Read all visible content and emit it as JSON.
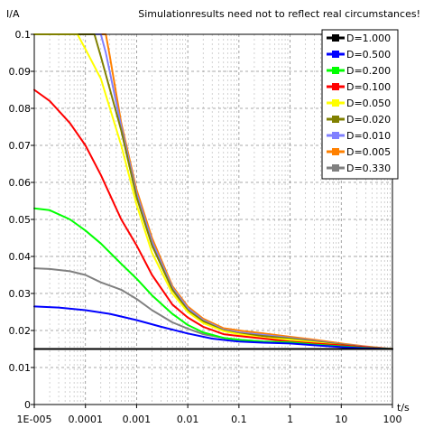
{
  "chart_data": {
    "type": "line",
    "notice": "Simulationresults need not to reflect real circumstances!",
    "ylabel": "I/A",
    "xlabel": "t/s",
    "x_scale": "log",
    "xlim": [
      1e-05,
      100
    ],
    "ylim": [
      0,
      0.1
    ],
    "x_tick_labels": [
      "1E-005",
      "0.0001",
      "0.001",
      "0.01",
      "0.1",
      "1",
      "10",
      "100"
    ],
    "x_tick_values": [
      1e-05,
      0.0001,
      0.001,
      0.01,
      0.1,
      1,
      10,
      100
    ],
    "y_tick_labels": [
      "0",
      "0.01",
      "0.02",
      "0.03",
      "0.04",
      "0.05",
      "0.06",
      "0.07",
      "0.08",
      "0.09",
      "0.1"
    ],
    "y_tick_values": [
      0,
      0.01,
      0.02,
      0.03,
      0.04,
      0.05,
      0.06,
      0.07,
      0.08,
      0.09,
      0.1
    ],
    "grid": true,
    "legend_position": "top-right",
    "series": [
      {
        "name": "D=1.000",
        "color": "#000000",
        "x": [
          1e-05,
          100
        ],
        "y": [
          0.015,
          0.015
        ]
      },
      {
        "name": "D=0.500",
        "color": "#0000ff",
        "x": [
          1e-05,
          3e-05,
          0.0001,
          0.0003,
          0.001,
          0.003,
          0.01,
          0.03,
          0.1,
          0.3,
          1,
          3,
          10,
          30,
          100
        ],
        "y": [
          0.0265,
          0.0262,
          0.0255,
          0.0245,
          0.0228,
          0.021,
          0.0192,
          0.0178,
          0.017,
          0.0167,
          0.0165,
          0.016,
          0.0155,
          0.0152,
          0.015
        ]
      },
      {
        "name": "D=0.200",
        "color": "#00ff00",
        "x": [
          1e-05,
          2e-05,
          5e-05,
          0.0001,
          0.0002,
          0.0005,
          0.001,
          0.002,
          0.005,
          0.01,
          0.02,
          0.05,
          0.1,
          0.3,
          1,
          3,
          10,
          30,
          100
        ],
        "y": [
          0.053,
          0.0525,
          0.05,
          0.047,
          0.0435,
          0.038,
          0.034,
          0.0295,
          0.0245,
          0.0215,
          0.0195,
          0.018,
          0.0175,
          0.017,
          0.0168,
          0.0162,
          0.0157,
          0.0153,
          0.015
        ]
      },
      {
        "name": "D=0.100",
        "color": "#ff0000",
        "x": [
          1e-05,
          2e-05,
          5e-05,
          0.0001,
          0.0002,
          0.0005,
          0.001,
          0.002,
          0.005,
          0.01,
          0.02,
          0.05,
          0.1,
          0.3,
          1,
          3,
          10,
          30,
          100
        ],
        "y": [
          0.085,
          0.082,
          0.076,
          0.07,
          0.062,
          0.05,
          0.043,
          0.035,
          0.027,
          0.0235,
          0.021,
          0.019,
          0.0185,
          0.0178,
          0.017,
          0.0165,
          0.016,
          0.0155,
          0.015
        ]
      },
      {
        "name": "D=0.050",
        "color": "#ffff00",
        "x": [
          1e-05,
          7e-05,
          0.0001,
          0.0002,
          0.0005,
          0.001,
          0.002,
          0.005,
          0.01,
          0.02,
          0.05,
          0.1,
          0.3,
          1,
          3,
          10,
          30,
          100
        ],
        "y": [
          0.1,
          0.1,
          0.096,
          0.088,
          0.07,
          0.054,
          0.041,
          0.03,
          0.025,
          0.022,
          0.0198,
          0.019,
          0.018,
          0.0175,
          0.0168,
          0.016,
          0.0155,
          0.015
        ]
      },
      {
        "name": "D=0.020",
        "color": "#808000",
        "x": [
          1e-05,
          0.00015,
          0.0002,
          0.0005,
          0.001,
          0.002,
          0.005,
          0.01,
          0.02,
          0.05,
          0.1,
          0.3,
          1,
          3,
          10,
          30,
          100
        ],
        "y": [
          0.1,
          0.1,
          0.094,
          0.074,
          0.056,
          0.043,
          0.031,
          0.0255,
          0.0225,
          0.02,
          0.0192,
          0.0185,
          0.0178,
          0.017,
          0.0162,
          0.0155,
          0.015
        ]
      },
      {
        "name": "D=0.010",
        "color": "#8080ff",
        "x": [
          1e-05,
          0.0002,
          0.00025,
          0.0005,
          0.001,
          0.002,
          0.005,
          0.01,
          0.02,
          0.05,
          0.1,
          0.3,
          1,
          3,
          10,
          30,
          100
        ],
        "y": [
          0.1,
          0.1,
          0.095,
          0.075,
          0.057,
          0.044,
          0.0315,
          0.026,
          0.0228,
          0.0202,
          0.0195,
          0.0188,
          0.018,
          0.0172,
          0.0163,
          0.0156,
          0.015
        ]
      },
      {
        "name": "D=0.005",
        "color": "#ff8000",
        "x": [
          1e-05,
          0.00025,
          0.0003,
          0.0005,
          0.001,
          0.002,
          0.005,
          0.01,
          0.02,
          0.05,
          0.1,
          0.3,
          1,
          3,
          10,
          30,
          100
        ],
        "y": [
          0.1,
          0.1,
          0.094,
          0.076,
          0.058,
          0.045,
          0.032,
          0.0265,
          0.0232,
          0.0206,
          0.02,
          0.0192,
          0.0183,
          0.0175,
          0.0165,
          0.0157,
          0.015
        ]
      },
      {
        "name": "D=0.330",
        "color": "#808080",
        "x": [
          1e-05,
          2e-05,
          5e-05,
          0.0001,
          0.0002,
          0.0005,
          0.001,
          0.002,
          0.005,
          0.01,
          0.02,
          0.05,
          0.1,
          0.3,
          1,
          3,
          10,
          30,
          100
        ],
        "y": [
          0.0368,
          0.0366,
          0.036,
          0.035,
          0.033,
          0.031,
          0.0285,
          0.0255,
          0.0222,
          0.0205,
          0.019,
          0.018,
          0.0175,
          0.017,
          0.0167,
          0.0162,
          0.0156,
          0.0152,
          0.015
        ]
      }
    ]
  }
}
